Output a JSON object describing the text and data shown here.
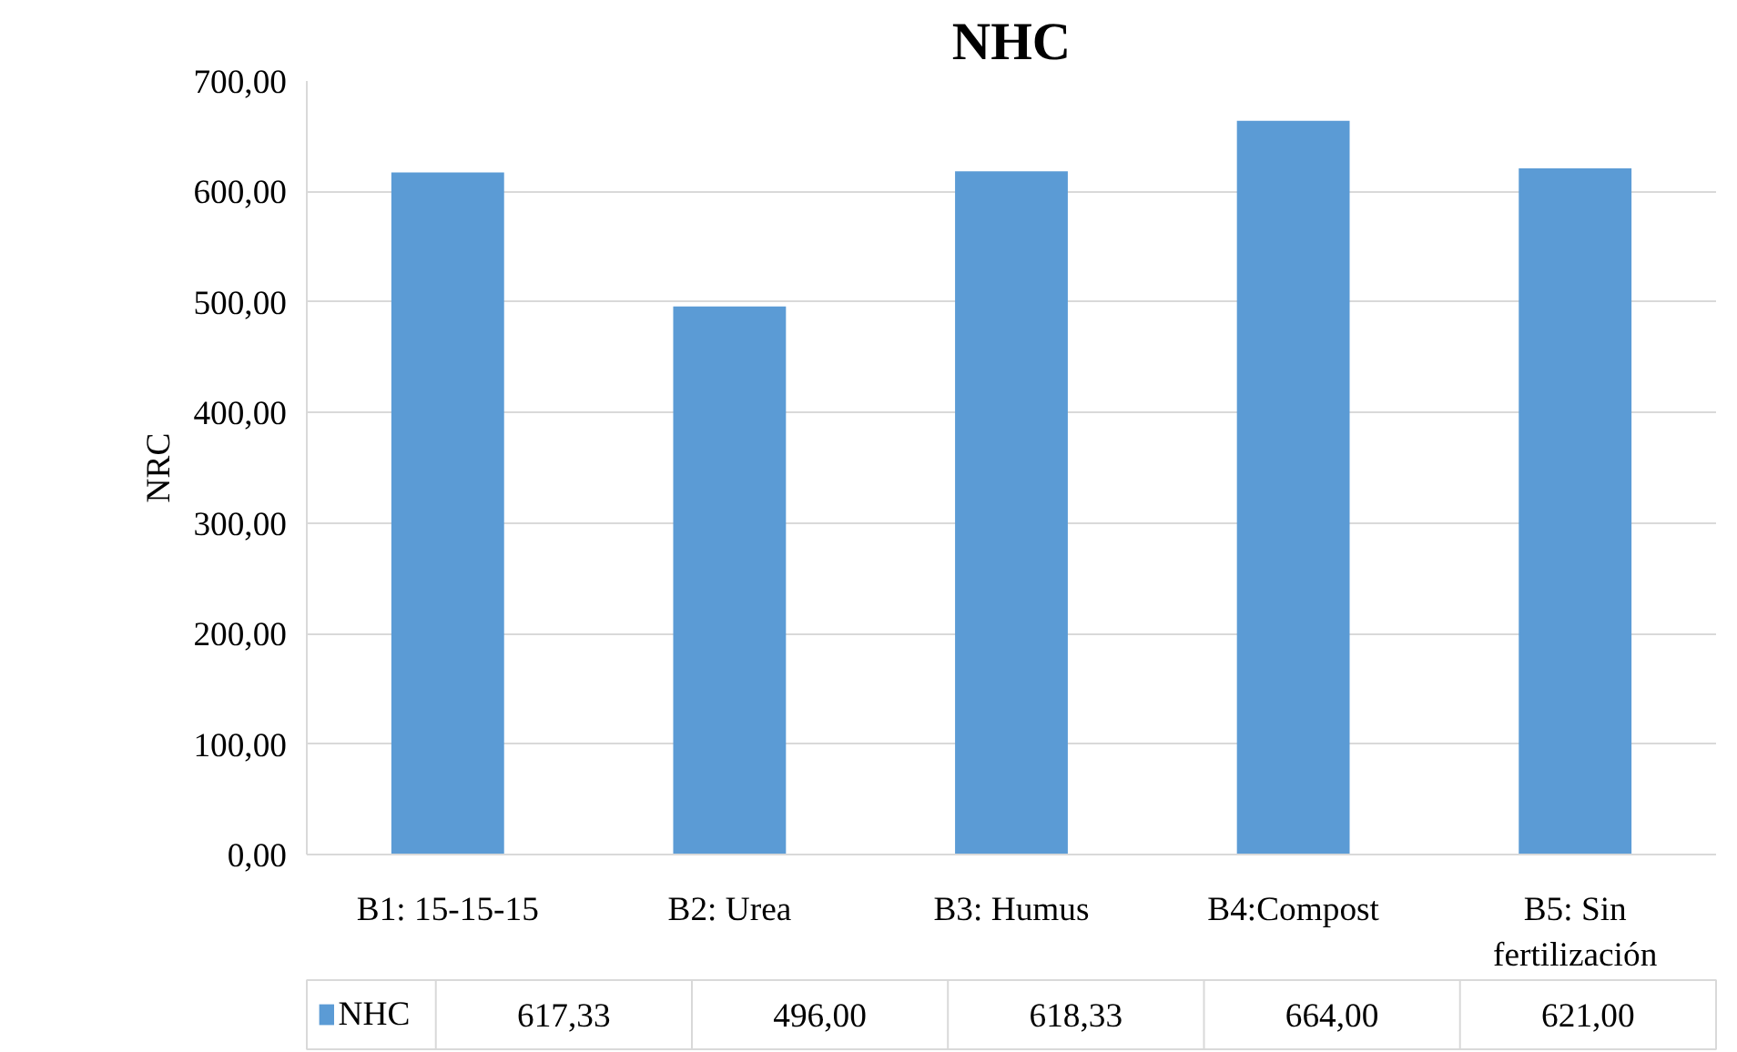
{
  "chart_data": {
    "type": "bar",
    "title": "NHC",
    "ylabel": "NRC",
    "categories": [
      "B1: 15-15-15",
      "B2: Urea",
      "B3: Humus",
      "B4:Compost",
      "B5: Sin fertilización"
    ],
    "series": [
      {
        "name": "NHC",
        "color": "#5b9bd5",
        "values": [
          617.33,
          496.0,
          618.33,
          664.0,
          621.0
        ],
        "value_labels": [
          "617,33",
          "496,00",
          "618,33",
          "664,00",
          "621,00"
        ]
      }
    ],
    "ylim": [
      0,
      700
    ],
    "yticks": [
      {
        "value": 0,
        "label": "0,00"
      },
      {
        "value": 100,
        "label": "100,00"
      },
      {
        "value": 200,
        "label": "200,00"
      },
      {
        "value": 300,
        "label": "300,00"
      },
      {
        "value": 400,
        "label": "400,00"
      },
      {
        "value": 500,
        "label": "500,00"
      },
      {
        "value": 600,
        "label": "600,00"
      },
      {
        "value": 700,
        "label": "700,00"
      }
    ],
    "grid": "y",
    "legend": "bottom"
  }
}
